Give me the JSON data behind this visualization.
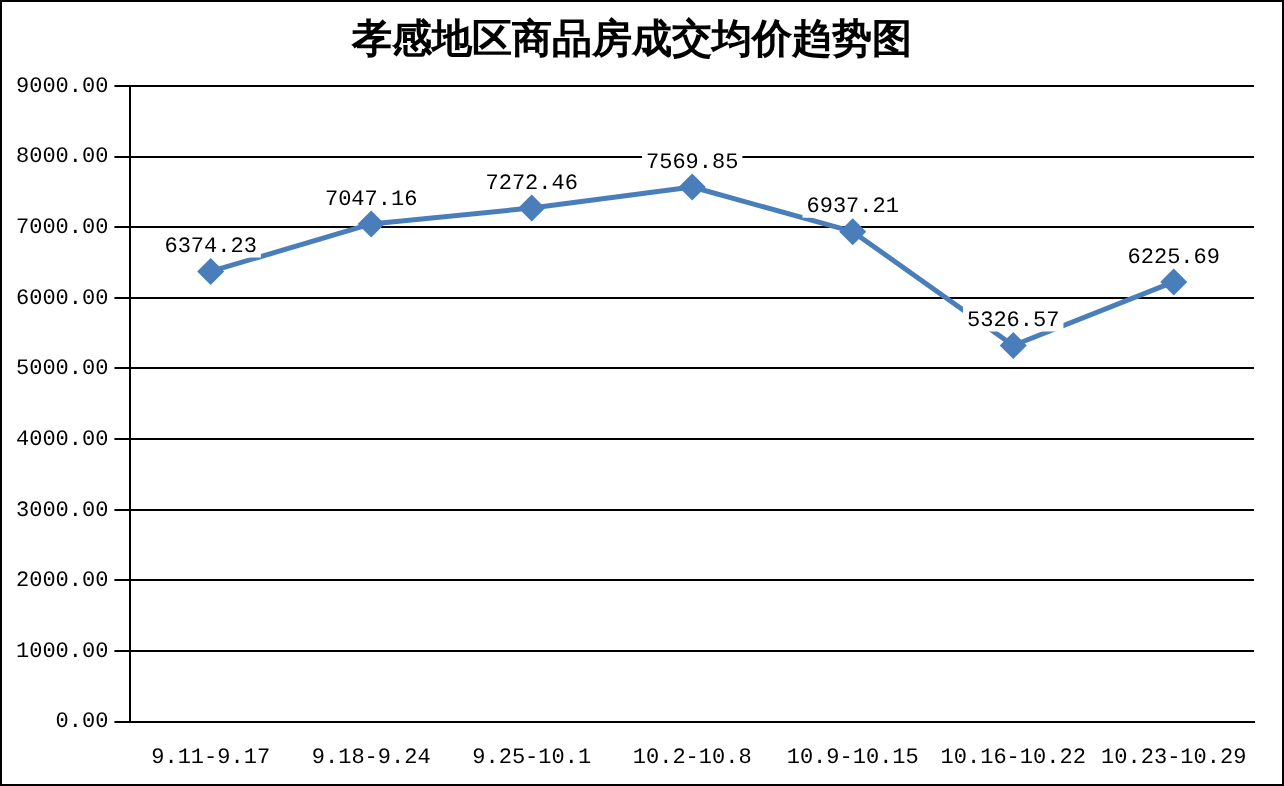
{
  "chart_data": {
    "type": "line",
    "title": "孝感地区商品房成交均价趋势图",
    "categories": [
      "9.11-9.17",
      "9.18-9.24",
      "9.25-10.1",
      "10.2-10.8",
      "10.9-10.15",
      "10.16-10.22",
      "10.23-10.29"
    ],
    "series": [
      {
        "color": "#4a7ebb",
        "values": [
          6374.23,
          7047.16,
          7272.46,
          7569.85,
          6937.21,
          5326.57,
          6225.69
        ]
      }
    ],
    "ylim": [
      0,
      9000
    ],
    "yticks": [
      {
        "value": 0,
        "label": "0.00"
      },
      {
        "value": 1000,
        "label": "1000.00"
      },
      {
        "value": 2000,
        "label": "2000.00"
      },
      {
        "value": 3000,
        "label": "3000.00"
      },
      {
        "value": 4000,
        "label": "4000.00"
      },
      {
        "value": 5000,
        "label": "5000.00"
      },
      {
        "value": 6000,
        "label": "6000.00"
      },
      {
        "value": 7000,
        "label": "7000.00"
      },
      {
        "value": 8000,
        "label": "8000.00"
      },
      {
        "value": 9000,
        "label": "9000.00"
      }
    ],
    "grid": "y",
    "legend": false,
    "marker": "diamond",
    "line_style": "solid",
    "data_labels": true
  }
}
